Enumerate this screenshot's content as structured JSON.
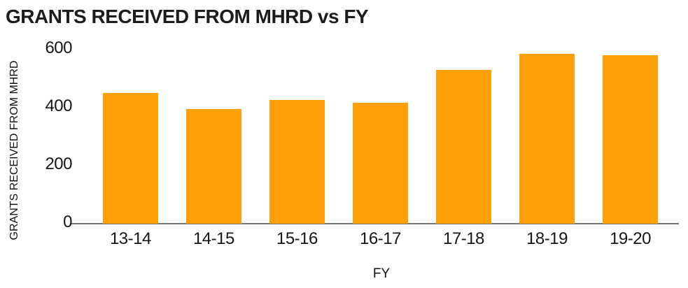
{
  "chart_data": {
    "type": "bar",
    "title": "GRANTS RECEIVED FROM MHRD vs FY",
    "xlabel": "FY",
    "ylabel": "GRANTS RECEIVED FROM MHRD",
    "categories": [
      "13-14",
      "14-15",
      "15-16",
      "16-17",
      "17-18",
      "18-19",
      "19-20"
    ],
    "values": [
      450,
      395,
      425,
      415,
      530,
      585,
      580
    ],
    "ylim": [
      0,
      600
    ],
    "yticks": [
      0,
      200,
      400,
      600
    ],
    "grid": false,
    "legend": "none",
    "bar_color": "#ffa008",
    "axis_line_color": "#757575",
    "text_color": "#161616",
    "title_color": "#1c1c1c",
    "background_color": "#ffffff"
  }
}
